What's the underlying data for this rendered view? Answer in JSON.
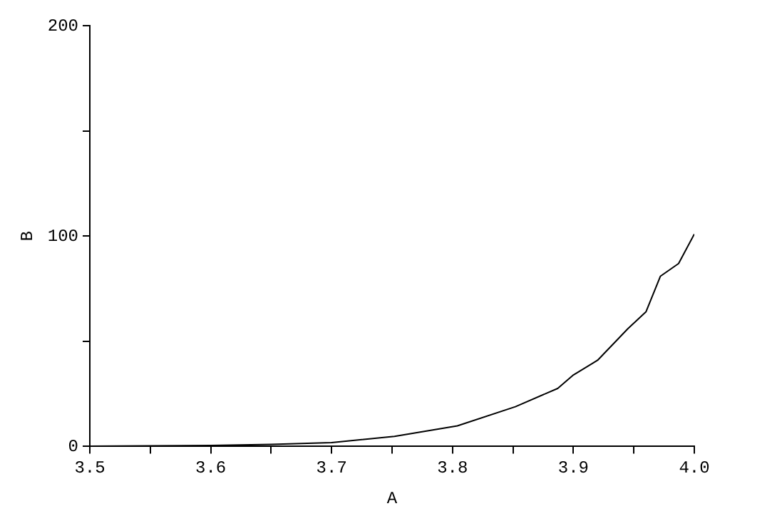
{
  "chart_data": {
    "type": "line",
    "xlabel": "A",
    "ylabel": "B",
    "x": [
      3.5,
      3.55,
      3.6,
      3.65,
      3.7,
      3.752,
      3.804,
      3.852,
      3.887,
      3.9,
      3.92,
      3.945,
      3.96,
      3.972,
      3.987,
      4.0
    ],
    "series": [
      {
        "color": "#000000",
        "values": [
          0.1,
          0.3,
          0.5,
          1,
          1.8,
          4.8,
          9.8,
          18.9,
          27.6,
          34,
          41,
          56,
          64,
          81,
          87,
          101
        ]
      }
    ],
    "xlim": [
      3.5,
      4.0
    ],
    "xticks": [
      3.5,
      {
        "value": 3.55,
        "label": null
      },
      3.6,
      {
        "value": 3.65,
        "label": null
      },
      3.7,
      {
        "value": 3.75,
        "label": null
      },
      3.8,
      {
        "value": 3.85,
        "label": null
      },
      3.9,
      {
        "value": 3.95,
        "label": null
      },
      {
        "value": 4.0,
        "label": "4.0"
      }
    ],
    "ylim": [
      0,
      200
    ],
    "yticks": [
      0,
      {
        "value": 50,
        "label": null
      },
      100,
      {
        "value": 150,
        "label": null
      },
      200
    ],
    "grid": false,
    "legend": false,
    "marker": "none",
    "line_style": "solid"
  }
}
